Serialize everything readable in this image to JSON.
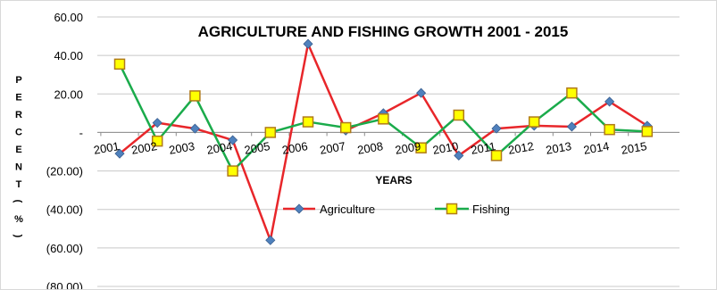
{
  "chart_data": {
    "type": "line",
    "title": "AGRICULTURE AND FISHING GROWTH 2001 - 2015",
    "xlabel": "YEARS",
    "ylabel": "PERCENT (%)",
    "ylabel_chars": [
      "P",
      "E",
      "R",
      "C",
      "E",
      "N",
      "T",
      "(",
      "%",
      ")"
    ],
    "categories": [
      "2001",
      "2002",
      "2003",
      "2004",
      "2005",
      "2006",
      "2007",
      "2008",
      "2009",
      "2010",
      "2011",
      "2012",
      "2013",
      "2014",
      "2015"
    ],
    "ylim": [
      -80,
      60
    ],
    "yticks": [
      60,
      40,
      20,
      0,
      -20,
      -40,
      -60,
      -80
    ],
    "ytick_labels": [
      "60.00",
      "40.00",
      "20.00",
      "-",
      "(20.00)",
      "(40.00)",
      "(60.00)",
      "(80.00)"
    ],
    "grid": true,
    "legend_position": "bottom-center",
    "series": [
      {
        "name": "Agriculture",
        "color": "#e8262a",
        "marker": "diamond",
        "marker_color": "#4f81bd",
        "values": [
          -11,
          5,
          2,
          -4,
          -56,
          46,
          1,
          10,
          20.5,
          -12,
          2,
          3.5,
          3,
          16,
          3.5
        ]
      },
      {
        "name": "Fishing",
        "color": "#1aab4b",
        "marker": "square",
        "marker_color": "#ffff00",
        "values": [
          35.5,
          -4.5,
          19,
          -20,
          0,
          5.5,
          2.5,
          7,
          -8,
          9,
          -12,
          5.5,
          20.5,
          1.5,
          0.5
        ]
      }
    ]
  }
}
